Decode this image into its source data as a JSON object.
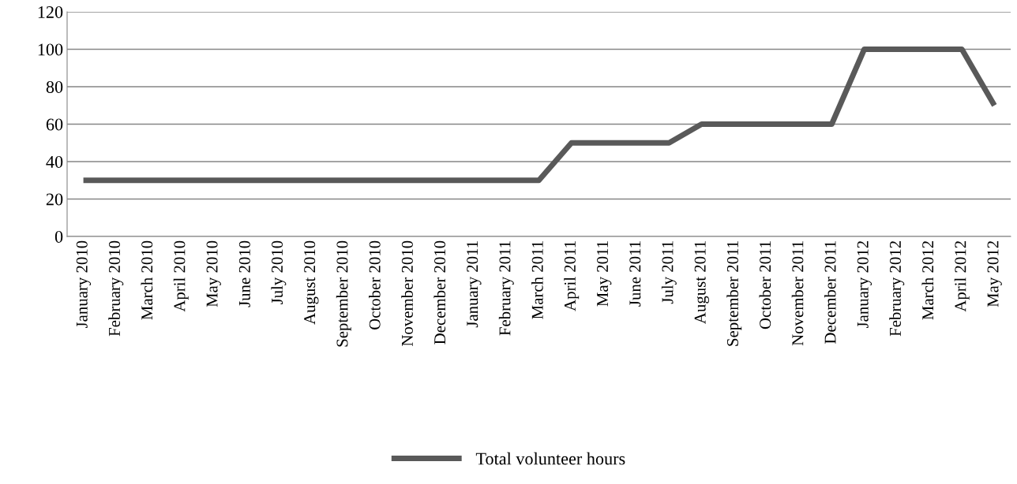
{
  "chart_data": {
    "type": "line",
    "categories": [
      "January 2010",
      "February 2010",
      "March 2010",
      "April 2010",
      "May 2010",
      "June 2010",
      "July 2010",
      "August 2010",
      "September 2010",
      "October 2010",
      "November 2010",
      "December 2010",
      "January 2011",
      "February 2011",
      "March 2011",
      "April 2011",
      "May 2011",
      "June 2011",
      "July 2011",
      "August 2011",
      "September 2011",
      "October 2011",
      "November 2011",
      "December 2011",
      "January 2012",
      "February 2012",
      "March 2012",
      "April 2012",
      "May 2012"
    ],
    "series": [
      {
        "name": "Total volunteer hours",
        "color": "#595959",
        "values": [
          30,
          30,
          30,
          30,
          30,
          30,
          30,
          30,
          30,
          30,
          30,
          30,
          30,
          30,
          30,
          50,
          50,
          50,
          50,
          60,
          60,
          60,
          60,
          60,
          100,
          100,
          100,
          100,
          70
        ]
      }
    ],
    "ylim": [
      0,
      120
    ],
    "yticks": [
      0,
      20,
      40,
      60,
      80,
      100,
      120
    ],
    "grid": "y",
    "legend": "bottom",
    "marker": "none",
    "line_style": "solid"
  }
}
